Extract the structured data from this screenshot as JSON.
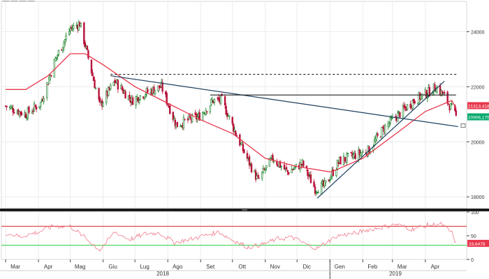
{
  "toolbar": {
    "icons": [
      "crosshair-icon",
      "pencil-icon",
      "line-icon",
      "settings-icon"
    ],
    "badge": "0"
  },
  "chart_data": [
    {
      "type": "candlestick",
      "title": "",
      "x_month_labels": [
        "Mar",
        "Apr",
        "Mag",
        "Giu",
        "Lug",
        "Ago",
        "Set",
        "Ott",
        "Nov",
        "Dic",
        "Gen",
        "Feb",
        "Mar",
        "Apr"
      ],
      "x_year_labels": [
        "2018",
        "2019"
      ],
      "y_ticks": [
        18000,
        20000,
        22000,
        24000
      ],
      "ylim": [
        17600,
        25100
      ],
      "price_path": [
        [
          "2018-03-01",
          21300
        ],
        [
          "2018-03-20",
          21000
        ],
        [
          "2018-04-03",
          21400
        ],
        [
          "2018-04-17",
          23000
        ],
        [
          "2018-05-01",
          24100
        ],
        [
          "2018-05-10",
          24300
        ],
        [
          "2018-05-17",
          23200
        ],
        [
          "2018-05-29",
          21300
        ],
        [
          "2018-06-12",
          22200
        ],
        [
          "2018-06-28",
          21500
        ],
        [
          "2018-07-12",
          21800
        ],
        [
          "2018-07-26",
          22000
        ],
        [
          "2018-08-09",
          20600
        ],
        [
          "2018-08-21",
          20800
        ],
        [
          "2018-08-30",
          20900
        ],
        [
          "2018-09-13",
          21500
        ],
        [
          "2018-09-21",
          21500
        ],
        [
          "2018-10-11",
          19700
        ],
        [
          "2018-10-25",
          18600
        ],
        [
          "2018-11-08",
          19400
        ],
        [
          "2018-11-22",
          18900
        ],
        [
          "2018-12-06",
          19200
        ],
        [
          "2018-12-18",
          18300
        ],
        [
          "2018-12-27",
          18400
        ],
        [
          "2019-01-10",
          19300
        ],
        [
          "2019-01-24",
          19500
        ],
        [
          "2019-02-07",
          19700
        ],
        [
          "2019-02-21",
          20500
        ],
        [
          "2019-03-07",
          21000
        ],
        [
          "2019-03-21",
          21500
        ],
        [
          "2019-04-04",
          21800
        ],
        [
          "2019-04-11",
          22000
        ],
        [
          "2019-04-18",
          21700
        ],
        [
          "2019-04-26",
          21200
        ],
        [
          "2019-04-30",
          20900
        ]
      ],
      "moving_average": [
        [
          "2018-03-01",
          21900
        ],
        [
          "2018-03-20",
          21900
        ],
        [
          "2018-04-10",
          22400
        ],
        [
          "2018-05-01",
          23200
        ],
        [
          "2018-05-15",
          23200
        ],
        [
          "2018-06-01",
          22800
        ],
        [
          "2018-07-01",
          22000
        ],
        [
          "2018-08-01",
          21400
        ],
        [
          "2018-09-01",
          20800
        ],
        [
          "2018-10-01",
          20300
        ],
        [
          "2018-11-01",
          19400
        ],
        [
          "2018-12-01",
          19100
        ],
        [
          "2019-01-02",
          18900
        ],
        [
          "2019-02-01",
          19400
        ],
        [
          "2019-03-01",
          20200
        ],
        [
          "2019-04-01",
          21100
        ],
        [
          "2019-04-26",
          21500
        ],
        [
          "2019-04-30",
          21200
        ]
      ],
      "trendlines": [
        {
          "from": [
            "2018-06-08",
            22400
          ],
          "to": [
            "2019-05-02",
            20550
          ]
        },
        {
          "from": [
            "2018-12-20",
            17950
          ],
          "to": [
            "2019-04-19",
            22200
          ]
        }
      ],
      "horizontal_lines": [
        {
          "style": "solid",
          "from": "2018-09-10",
          "to": "2019-04-30",
          "value": 21700
        },
        {
          "style": "dashed",
          "from": "2018-06-08",
          "to": "2019-05-02",
          "value": 22450
        }
      ],
      "last_value_badges": [
        "21313,4189",
        "20906,1757"
      ],
      "badge_colors": [
        "#e8364a",
        "#00a86b"
      ],
      "ma_color": "#e8364a",
      "trendline_color": "#1c3f5e",
      "up_color": "#0c7a1c",
      "down_color": "#b8123a"
    },
    {
      "type": "line",
      "title": "",
      "y_ticks": [
        0,
        50,
        100
      ],
      "ylim": [
        0,
        100
      ],
      "upper_level": 70,
      "lower_level": 30,
      "last_value_badge": "33,6478",
      "rsi_path": [
        [
          "2018-03-01",
          56
        ],
        [
          "2018-03-15",
          48
        ],
        [
          "2018-04-01",
          58
        ],
        [
          "2018-04-15",
          70
        ],
        [
          "2018-05-01",
          70
        ],
        [
          "2018-05-15",
          46
        ],
        [
          "2018-05-29",
          20
        ],
        [
          "2018-06-12",
          58
        ],
        [
          "2018-06-26",
          42
        ],
        [
          "2018-07-10",
          54
        ],
        [
          "2018-07-24",
          56
        ],
        [
          "2018-08-07",
          36
        ],
        [
          "2018-08-21",
          42
        ],
        [
          "2018-09-04",
          50
        ],
        [
          "2018-09-18",
          58
        ],
        [
          "2018-10-02",
          40
        ],
        [
          "2018-10-16",
          26
        ],
        [
          "2018-10-30",
          32
        ],
        [
          "2018-11-13",
          44
        ],
        [
          "2018-11-27",
          46
        ],
        [
          "2018-12-11",
          30
        ],
        [
          "2018-12-20",
          24
        ],
        [
          "2019-01-08",
          50
        ],
        [
          "2019-01-22",
          54
        ],
        [
          "2019-02-05",
          62
        ],
        [
          "2019-02-19",
          68
        ],
        [
          "2019-03-05",
          74
        ],
        [
          "2019-03-19",
          64
        ],
        [
          "2019-04-02",
          72
        ],
        [
          "2019-04-16",
          74
        ],
        [
          "2019-04-26",
          56
        ],
        [
          "2019-04-30",
          34
        ]
      ],
      "line_color": "#f07c8a",
      "upper_color": "#d62828",
      "lower_color": "#2ecc40"
    }
  ]
}
